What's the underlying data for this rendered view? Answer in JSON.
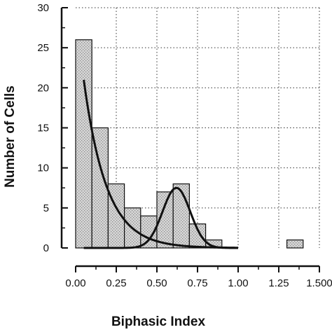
{
  "chart_data": {
    "type": "bar",
    "xlabel": "Biphasic Index",
    "ylabel": "Number of Cells",
    "xlim": [
      0,
      1.5
    ],
    "ylim": [
      0,
      30
    ],
    "x_ticks": [
      {
        "value": 0.0,
        "label": "0.00"
      },
      {
        "value": 0.25,
        "label": "0.25"
      },
      {
        "value": 0.5,
        "label": "0.50"
      },
      {
        "value": 0.75,
        "label": "0.75"
      },
      {
        "value": 1.0,
        "label": "1.00"
      },
      {
        "value": 1.25,
        "label": "1.25"
      },
      {
        "value": 1.5,
        "label": "1.500"
      }
    ],
    "y_ticks": [
      {
        "value": 0,
        "label": "0"
      },
      {
        "value": 5,
        "label": "5"
      },
      {
        "value": 10,
        "label": "10"
      },
      {
        "value": 15,
        "label": "15"
      },
      {
        "value": 20,
        "label": "20"
      },
      {
        "value": 25,
        "label": "25"
      },
      {
        "value": 30,
        "label": "30"
      }
    ],
    "grid": true,
    "bin_width": 0.1,
    "bins": [
      {
        "x0": 0.0,
        "count": 26
      },
      {
        "x0": 0.1,
        "count": 15
      },
      {
        "x0": 0.2,
        "count": 8
      },
      {
        "x0": 0.3,
        "count": 5
      },
      {
        "x0": 0.4,
        "count": 4
      },
      {
        "x0": 0.5,
        "count": 7
      },
      {
        "x0": 0.6,
        "count": 8
      },
      {
        "x0": 0.7,
        "count": 3
      },
      {
        "x0": 0.8,
        "count": 1
      },
      {
        "x0": 0.9,
        "count": 0
      },
      {
        "x0": 1.0,
        "count": 0
      },
      {
        "x0": 1.1,
        "count": 0
      },
      {
        "x0": 1.2,
        "count": 0
      },
      {
        "x0": 1.3,
        "count": 1
      }
    ],
    "fit_curves": [
      {
        "type": "exponential",
        "amplitude": 30,
        "decay": 0.14,
        "x_range": [
          0.05,
          1.0
        ]
      },
      {
        "type": "gaussian",
        "amplitude": 7.5,
        "mean": 0.62,
        "sd": 0.085,
        "x_range": [
          0.05,
          1.0
        ]
      }
    ],
    "colors": {
      "bar_fill": "#cfcfcf",
      "bar_stroke": "#111111",
      "curve": "#111111",
      "grid": "#333333"
    }
  }
}
